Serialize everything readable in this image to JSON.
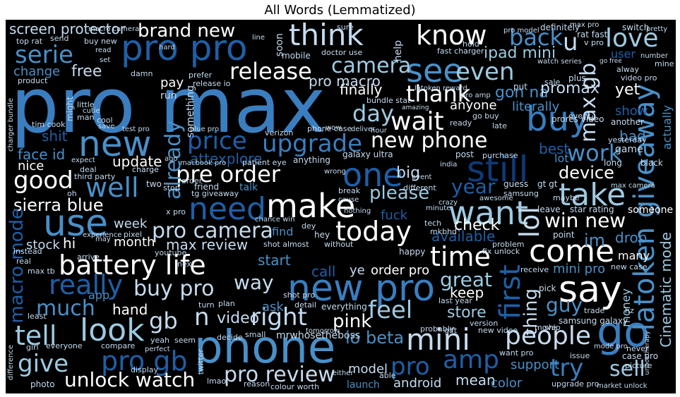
{
  "title": "All Words (Lemmatized)",
  "palette": {
    "background": "#000000",
    "white": "#ffffff",
    "pale": "#c6dbef",
    "light": "#9ecae1",
    "mid": "#4a90c8",
    "steel": "#3a7ebf",
    "dark": "#1f5fa6",
    "navy": "#0e3a78",
    "deep": "#08306b"
  },
  "words": {
    "pro_max": "pro max",
    "phone": "phone",
    "new_pro": "new pro",
    "come": "come",
    "say": "say",
    "go": "go",
    "make": "make",
    "use": "use",
    "need": "need",
    "one": "one",
    "still": "still",
    "buy": "buy",
    "see": "see",
    "think": "think",
    "know": "know",
    "pro_pro": "pro pro",
    "new": "new",
    "battery_life": "battery life",
    "mini": "mini",
    "people": "people",
    "want": "want",
    "take": "take",
    "latoken_giveaway": "latoken giveaway",
    "look": "look",
    "tell": "tell",
    "give": "give",
    "pro_gb": "pro gb",
    "unlock_watch": "unlock watch",
    "pro_review": "pro review",
    "right": "right",
    "time": "time",
    "today": "today",
    "pro_camera": "pro camera",
    "pre_order": "pre order",
    "sierra_blue": "sierra blue",
    "good": "good",
    "well": "well",
    "upgrade": "upgrade",
    "price": "price",
    "wait": "wait",
    "new_phone": "new phone",
    "day": "day",
    "release": "release",
    "brand_new": "brand new",
    "camera": "camera",
    "even": "even",
    "back": "back",
    "u": "u",
    "love": "love",
    "max_gb": "max gb",
    "thank": "thank",
    "gon_na": "gon na",
    "work": "work",
    "win_new": "win new",
    "lol": "lol",
    "first": "first",
    "really": "really",
    "much": "much",
    "macro_mode": "macro mode",
    "buy_pro": "buy pro",
    "gb": "gb",
    "n": "n",
    "feel": "feel",
    "great": "great",
    "guy": "guy",
    "thing": "thing",
    "try": "try",
    "sell": "sell",
    "amp": "amp",
    "pro": "pro",
    "cinematic_mode": "Cinematic mode",
    "serie": "serie",
    "already": "already",
    "update": "update",
    "free": "free",
    "change": "change",
    "screen_protector": "screen protector",
    "ipad_mini": "ipad mini",
    "promax": "promax",
    "literally": "literally",
    "yet": "yet",
    "attexplore": "attexplore",
    "please": "please",
    "year": "year",
    "device": "device",
    "pink": "pink",
    "io_beta": "io beta",
    "video": "video",
    "hand": "hand",
    "way": "way",
    "week": "week",
    "month": "month",
    "max_review": "max review",
    "stock": "stock",
    "hi": "hi",
    "nice": "nice",
    "face_id": "face id",
    "shit": "shit",
    "finally": "finally",
    "anyone": "anyone",
    "pro_macro": "pro macro",
    "big": "big",
    "best": "best",
    "lot": "lot",
    "check": "check",
    "available": "available",
    "store": "store",
    "keep": "keep",
    "model": "model",
    "mean": "mean",
    "color": "color",
    "support": "support",
    "android": "android",
    "launch": "launch",
    "mini_pro": "mini pro",
    "drop": "drop",
    "im": "im",
    "show": "show",
    "bad": "bad",
    "actually": "actually",
    "call": "call",
    "ask": "ask",
    "start": "start",
    "find": "find",
    "talk": "talk",
    "app": "app",
    "order_pro": "order pro",
    "ye": "ye",
    "fuck": "fuck",
    "money": "money",
    "many": "many",
    "mrwhosetheboss": "mrwhosetheboss",
    "everyone": "everyone",
    "everything": "everything",
    "compare": "compare",
    "photo": "photo",
    "girl": "girl",
    "least": "least",
    "without": "without",
    "hey": "hey",
    "problem": "problem",
    "fix_unlock": "fix unlock",
    "happy": "happy",
    "max_camera": "max camera",
    "someone": "someone",
    "point": "point",
    "leave": "leave",
    "star_rating": "star rating",
    "maybe": "maybe",
    "guess": "guess",
    "gt_gt": "gt gt",
    "samsung": "samsung",
    "game": "game",
    "long": "long",
    "black": "black",
    "new_case": "new case",
    "case_pro": "case pro",
    "picture": "picture",
    "never": "never",
    "unboxthearpy": "unboxtherapy",
    "mode_pro": "mode pro",
    "samsung_galaxy": "samsung galaxy",
    "trade": "trade",
    "hz": "hz",
    "issue": "issue",
    "pick": "pick",
    "move": "move",
    "ship": "ship",
    "receive": "receive",
    "want_pro": "want pro",
    "version": "version",
    "new_video": "new video",
    "gift": "gift",
    "probably": "probably",
    "last_year": "last year",
    "upgrade_pro": "upgrade pro",
    "market_unlock": "market unlock",
    "galaxy_ultra": "galaxy ultra",
    "post": "post",
    "purchase": "purchase",
    "phone_case": "phone case",
    "verizon": "verizon",
    "anything": "anything",
    "patient_eye": "patient eye",
    "tg_giveaway": "tg giveaway",
    "friend": "friend",
    "order": "order",
    "stop": "stop",
    "two": "two",
    "something": "something",
    "pay": "pay",
    "run": "run",
    "prefer": "prefer",
    "release_io": "release io",
    "soon": "soon",
    "mobile": "mobile",
    "doctor_use": "doctor use",
    "fast_charger": "fast charger",
    "help": "help",
    "bundle_stat": "bundle stat",
    "latoken_reward": "latoken reward",
    "go_buy": "go buy",
    "ready": "ready",
    "late": "late",
    "put": "put",
    "prores_video": "prores video",
    "yesterday": "yesterday",
    "another": "another",
    "every": "every",
    "might": "might",
    "little": "little",
    "sale": "sale",
    "plus": "plus",
    "cool": "cool",
    "tim_cook": "tim cook",
    "top_rat": "top rat",
    "send": "send",
    "buy_new": "buy new",
    "read": "read",
    "set": "set",
    "hard": "hard",
    "line": "line",
    "macro_camera": "macro camera",
    "pro_model": "pro model",
    "definitely": "definitely",
    "rat_fast": "rat fast",
    "switch": "switch",
    "pretty": "pretty",
    "number": "number",
    "alway": "alway",
    "video_pro": "video pro",
    "user": "user",
    "sure": "sure",
    "instead": "instead",
    "real": "real",
    "max_tb": "max tb",
    "arrive": "arrive",
    "pixel": "pixel",
    "youtube": "youtube",
    "next": "next",
    "turn": "turn",
    "plan": "plan",
    "detail": "detail",
    "shot_pro": "shot pro",
    "small": "small",
    "decide": "decide",
    "tomorrow": "tomorrow",
    "seem": "seem",
    "yeah": "yeah",
    "perfect": "perfect",
    "display": "display",
    "lmao": "lmao",
    "twitter": "twitter",
    "reason": "reason",
    "colour_worth": "colour worth",
    "able": "able",
    "either": "either",
    "difference": "difference",
    "charger_bundle": "charger bundle",
    "product": "product",
    "x_pro": "x pro",
    "chance_win": "chance win",
    "shot_almost": "shot almost",
    "dey": "dey",
    "tech": "tech",
    "mkbhd": "mkbhd",
    "minute": "minute",
    "crazy": "crazy",
    "awesome": "awesome",
    "nothing": "nothing",
    "cause": "cause",
    "break": "break",
    "different": "different",
    "wrong": "wrong",
    "event": "event",
    "india": "india",
    "deal": "deal",
    "third_party": "third party",
    "charge": "charge",
    "expect": "expect",
    "macbook_pro": "macbook pro",
    "ago": "ago",
    "oh": "oh",
    "experience": "experience",
    "may": "may",
    "hour": "hour",
    "deliver": "deliver",
    "wow": "wow",
    "amazing": "amazing",
    "test_pro": "test pro",
    "save": "save",
    "blue_pro": "blue pro",
    "man": "man",
    "cutie": "cutie",
    "damn": "damn",
    "hold": "hold",
    "watch_series": "watch series",
    "pro_amp": "pro amp",
    "max_pro": "max pro",
    "v_pro": "v pro",
    "mine": "mine",
    "go_free": "go free"
  }
}
